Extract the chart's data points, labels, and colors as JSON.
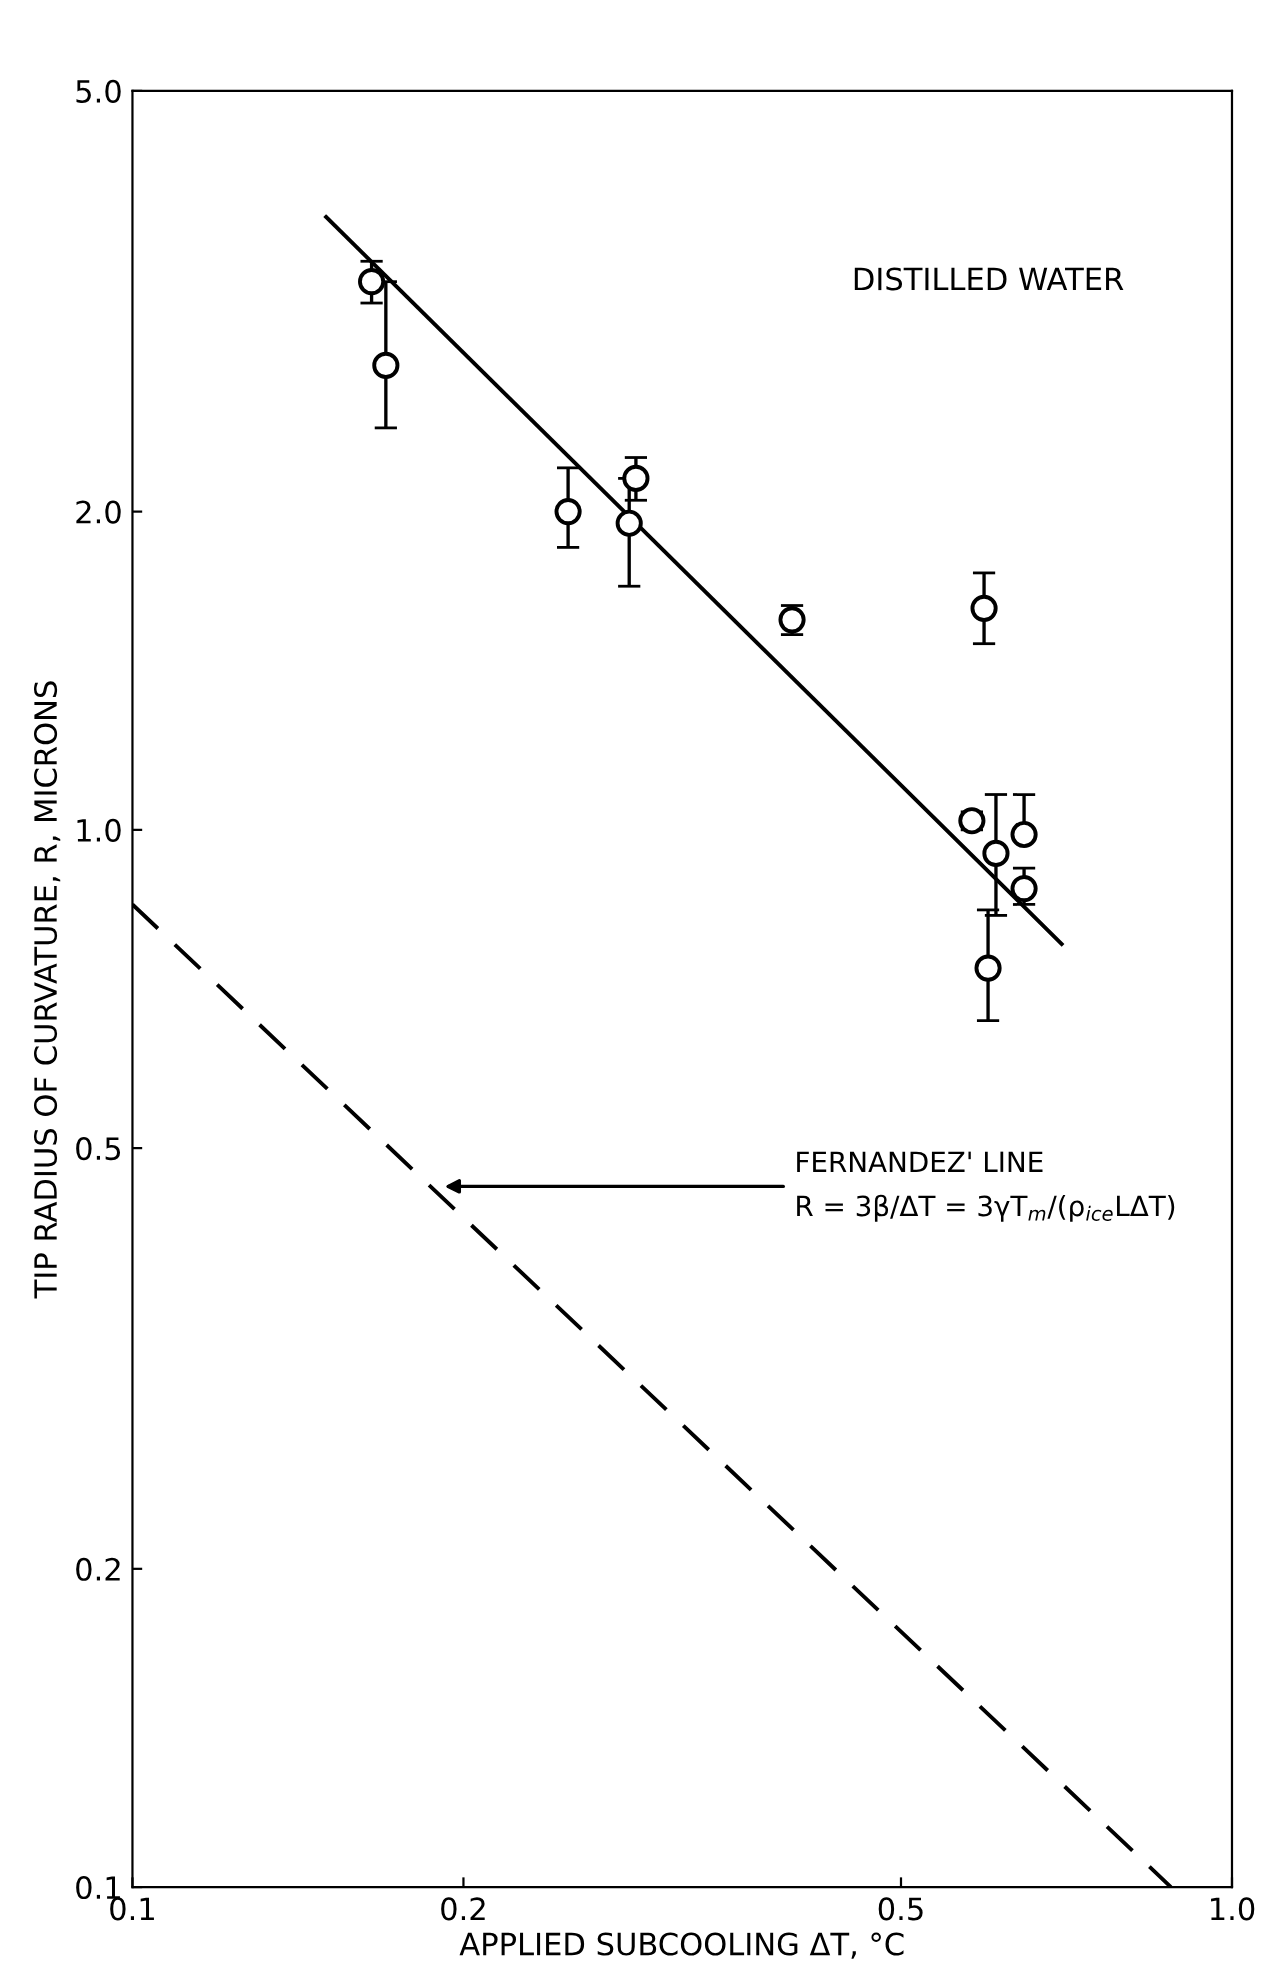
{
  "chart_data": {
    "type": "scatter",
    "xlabel": "APPLIED SUBCOOLING ΔT, °C",
    "ylabel": "TIP RADIUS OF CURVATURE, R, MICRONS",
    "log": "xy",
    "xlim": [
      0.1,
      1.0
    ],
    "ylim": [
      0.1,
      5.0
    ],
    "xticks": [
      0.1,
      0.2,
      0.5,
      {
        "value": 1.0,
        "label": "1.0"
      }
    ],
    "yticks": [
      0.1,
      0.2,
      0.5,
      {
        "value": 1.0,
        "label": "1.0"
      },
      {
        "value": 2.0,
        "label": "2.0"
      },
      {
        "value": 5.0,
        "label": "5.0"
      }
    ],
    "grid": false,
    "legend": false,
    "series": [
      {
        "name": "DISTILLED WATER",
        "marker": "circle",
        "color": "#000000",
        "x": [
          0.165,
          0.17,
          0.249,
          0.283,
          0.287,
          0.398,
          0.595,
          0.58,
          0.61,
          0.6,
          0.647,
          0.647
        ],
        "values": [
          3.3,
          2.75,
          2.0,
          1.95,
          2.15,
          1.58,
          1.62,
          1.02,
          0.95,
          0.74,
          0.99,
          0.88
        ],
        "errors": [
          [
            3.15,
            3.45
          ],
          [
            2.4,
            3.3
          ],
          [
            1.85,
            2.2
          ],
          [
            1.7,
            2.15
          ],
          [
            2.05,
            2.25
          ],
          [
            1.53,
            1.63
          ],
          [
            1.5,
            1.75
          ],
          [
            1.0,
            1.04
          ],
          [
            0.83,
            1.08
          ],
          [
            0.66,
            0.84
          ],
          [
            0.99,
            1.08
          ],
          [
            0.85,
            0.92
          ]
        ]
      },
      {
        "type": "line",
        "line_style": "solid",
        "color": "#000000",
        "x": [
          0.15,
          0.7
        ],
        "values": [
          3.8,
          0.78
        ]
      },
      {
        "type": "line",
        "line_style": "dashed",
        "color": "#000000",
        "x": [
          0.1,
          0.88
        ],
        "values": [
          0.85,
          0.1
        ]
      }
    ],
    "annotations": [
      {
        "text": "FERNANDEZ' LINE\nR = 3β/ΔT = 3γT$_{m}$/(ρ$_{ice}$LΔT)",
        "x": 0.19,
        "y": 0.46
      }
    ]
  }
}
